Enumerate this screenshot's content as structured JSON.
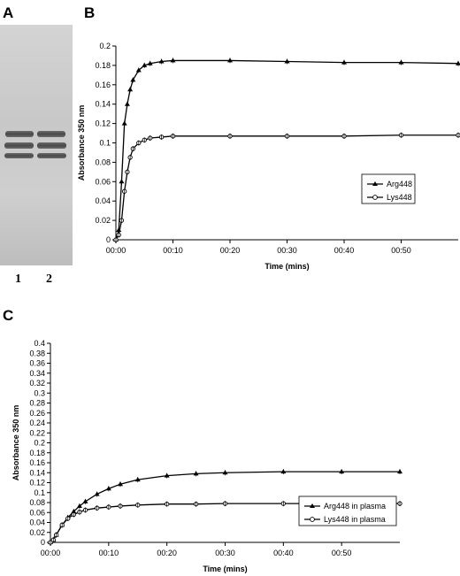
{
  "panels": {
    "A": "A",
    "B": "B",
    "C": "C"
  },
  "gel": {
    "lane_labels": [
      "1",
      "2"
    ],
    "colors": {
      "band": "#555555",
      "background": "#cccccc"
    }
  },
  "chart_data": [
    {
      "type": "line",
      "xlabel": "Time (mins)",
      "ylabel": "Absorbance 350 nm",
      "xlim": [
        0,
        60
      ],
      "ylim": [
        0,
        0.2
      ],
      "x_ticks": [
        0,
        10,
        20,
        30,
        40,
        50
      ],
      "x_tick_labels": [
        "00:00",
        "00:10",
        "00:20",
        "00:30",
        "00:40",
        "00:50"
      ],
      "y_ticks": [
        0,
        0.02,
        0.04,
        0.06,
        0.08,
        0.1,
        0.12,
        0.14,
        0.16,
        0.18,
        0.2
      ],
      "y_tick_labels": [
        "0",
        "0.02",
        "0.04",
        "0.06",
        "0.08",
        "0.1",
        "0.12",
        "0.14",
        "0.16",
        "0.18",
        "0.2"
      ],
      "grid": false,
      "legend_position": "right",
      "series": [
        {
          "name": "Arg448",
          "marker": "triangle",
          "x": [
            0,
            0.5,
            1,
            1.5,
            2,
            2.5,
            3,
            4,
            5,
            6,
            8,
            10,
            20,
            30,
            40,
            50,
            60
          ],
          "y": [
            0,
            0.01,
            0.06,
            0.12,
            0.14,
            0.155,
            0.165,
            0.175,
            0.18,
            0.182,
            0.184,
            0.185,
            0.185,
            0.184,
            0.183,
            0.183,
            0.182
          ]
        },
        {
          "name": "Lys448",
          "marker": "circle",
          "x": [
            0,
            0.5,
            1,
            1.5,
            2,
            2.5,
            3,
            4,
            5,
            6,
            8,
            10,
            20,
            30,
            40,
            50,
            60
          ],
          "y": [
            0,
            0.005,
            0.02,
            0.05,
            0.07,
            0.085,
            0.094,
            0.1,
            0.103,
            0.105,
            0.106,
            0.107,
            0.107,
            0.107,
            0.107,
            0.108,
            0.108
          ]
        }
      ]
    },
    {
      "type": "line",
      "xlabel": "Time (mins)",
      "ylabel": "Absorbance 350 nm",
      "xlim": [
        0,
        60
      ],
      "ylim": [
        0,
        0.4
      ],
      "x_ticks": [
        0,
        10,
        20,
        30,
        40,
        50
      ],
      "x_tick_labels": [
        "00:00",
        "00:10",
        "00:20",
        "00:30",
        "00:40",
        "00:50"
      ],
      "y_ticks": [
        0,
        0.02,
        0.04,
        0.06,
        0.08,
        0.1,
        0.12,
        0.14,
        0.16,
        0.18,
        0.2,
        0.22,
        0.24,
        0.26,
        0.28,
        0.3,
        0.32,
        0.34,
        0.36,
        0.38,
        0.4
      ],
      "y_tick_labels": [
        "0",
        "0.02",
        "0.04",
        "0.06",
        "0.08",
        "0.1",
        "0.12",
        "0.14",
        "0.16",
        "0.18",
        "0.2",
        "0.22",
        "0.24",
        "0.26",
        "0.28",
        "0.3",
        "0.32",
        "0.34",
        "0.36",
        "0.38",
        "0.4"
      ],
      "grid": false,
      "legend_position": "bottom-right",
      "series": [
        {
          "name": "Arg448 in plasma",
          "marker": "triangle",
          "x": [
            0,
            0.5,
            1,
            2,
            3,
            4,
            5,
            6,
            8,
            10,
            12,
            15,
            20,
            25,
            30,
            40,
            50,
            60
          ],
          "y": [
            0,
            0.005,
            0.015,
            0.035,
            0.05,
            0.062,
            0.073,
            0.082,
            0.097,
            0.108,
            0.117,
            0.126,
            0.134,
            0.138,
            0.14,
            0.142,
            0.142,
            0.142
          ]
        },
        {
          "name": "Lys448 in plasma",
          "marker": "circle",
          "x": [
            0,
            0.5,
            1,
            2,
            3,
            4,
            5,
            6,
            8,
            10,
            12,
            15,
            20,
            25,
            30,
            40,
            50,
            60
          ],
          "y": [
            0,
            0.005,
            0.015,
            0.035,
            0.048,
            0.056,
            0.061,
            0.065,
            0.069,
            0.071,
            0.073,
            0.075,
            0.077,
            0.077,
            0.078,
            0.078,
            0.078,
            0.078
          ]
        }
      ]
    }
  ]
}
